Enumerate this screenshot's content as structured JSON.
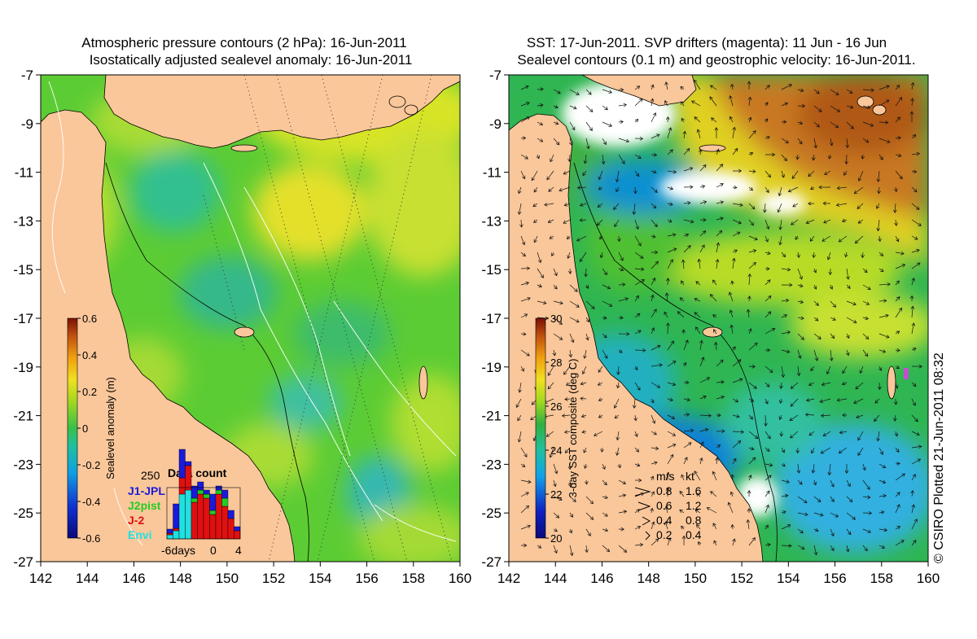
{
  "left_map": {
    "title_line1": "Atmospheric pressure contours (2 hPa): 16-Jun-2011",
    "title_line2": "Isostatically adjusted sealevel anomaly: 16-Jun-2011",
    "lat_ticks": [
      "-7",
      "-9",
      "-11",
      "-13",
      "-15",
      "-17",
      "-19",
      "-21",
      "-23",
      "-25",
      "-27"
    ],
    "lon_ticks": [
      "142",
      "144",
      "146",
      "148",
      "150",
      "152",
      "154",
      "156",
      "158",
      "160"
    ],
    "colorbar": {
      "label": "Sealevel anomaly (m)",
      "ticks": [
        "0.6",
        "0.4",
        "0.2",
        "0",
        "-0.2",
        "-0.4",
        "-0.6"
      ],
      "range": [
        -0.6,
        0.6
      ]
    },
    "data_count": {
      "title": "Data count",
      "max_label": "250",
      "x_ticks": [
        "-6days",
        "0",
        "4"
      ],
      "legend": [
        {
          "label": "J1-JPL",
          "color": "#1a1adc"
        },
        {
          "label": "J2pist",
          "color": "#22cc22"
        },
        {
          "label": "J-2",
          "color": "#e01010"
        },
        {
          "label": "Envi",
          "color": "#20e0e0"
        }
      ]
    }
  },
  "right_map": {
    "title_line1": "SST: 17-Jun-2011. SVP drifters (magenta): 11 Jun - 16 Jun",
    "title_line2": "Sealevel contours (0.1 m) and geostrophic velocity: 16-Jun-2011.",
    "lat_ticks": [
      "-7",
      "-9",
      "-11",
      "-13",
      "-15",
      "-17",
      "-19",
      "-21",
      "-23",
      "-25",
      "-27"
    ],
    "lon_ticks": [
      "142",
      "144",
      "146",
      "148",
      "150",
      "152",
      "154",
      "156",
      "158",
      "160"
    ],
    "colorbar": {
      "label": "3-day SST composite (deg C)",
      "ticks": [
        "30",
        "28",
        "26",
        "24",
        "22",
        "20"
      ],
      "range": [
        20,
        30
      ]
    },
    "velocity_legend": {
      "header_ms": "m/s",
      "header_kt": "kt",
      "rows": [
        {
          "ms": "0.8",
          "kt": "1.6"
        },
        {
          "ms": "0.6",
          "kt": "1.2"
        },
        {
          "ms": "0.4",
          "kt": "0.8"
        },
        {
          "ms": "0.2",
          "kt": "0.4"
        }
      ]
    }
  },
  "credit": "© CSIRO Plotted 21-Jun-2011 08:32",
  "colors": {
    "land": "#fac79a",
    "sla_base": "#5ccc34",
    "sst_base": "#2fb552"
  }
}
